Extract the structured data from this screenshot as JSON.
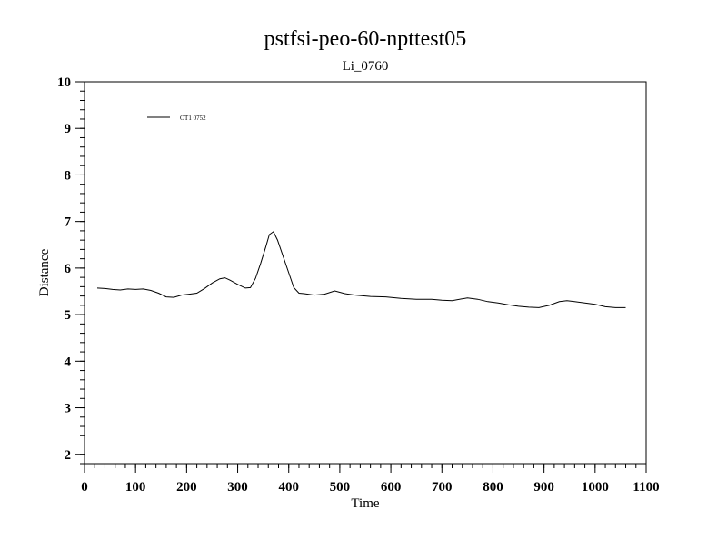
{
  "chart_data": {
    "type": "line",
    "title": "pstfsi-peo-60-npttest05",
    "subtitle": "Li_0760",
    "xlabel": "Time",
    "ylabel": "Distance",
    "xlim": [
      0,
      1100
    ],
    "ylim": [
      1.8,
      10
    ],
    "x_major_ticks": [
      0,
      100,
      200,
      300,
      400,
      500,
      600,
      700,
      800,
      900,
      1000,
      1100
    ],
    "x_tick_labels": [
      "0",
      "100",
      "200",
      "300",
      "400",
      "500",
      "600",
      "700",
      "800",
      "900",
      "1000",
      "1100"
    ],
    "y_major_ticks": [
      2,
      3,
      4,
      5,
      6,
      7,
      8,
      9,
      10
    ],
    "y_tick_labels": [
      "2",
      "3",
      "4",
      "5",
      "6",
      "7",
      "8",
      "9",
      "10"
    ],
    "x_minor_step": 20,
    "y_minor_step": 0.2,
    "grid": false,
    "legend_position": "top-left",
    "line_color": "#000000",
    "series": [
      {
        "name": "OT1 0752",
        "x": [
          25,
          40,
          55,
          70,
          85,
          100,
          115,
          130,
          145,
          160,
          175,
          190,
          205,
          220,
          235,
          250,
          265,
          275,
          285,
          300,
          315,
          325,
          335,
          345,
          355,
          362,
          370,
          378,
          390,
          400,
          410,
          420,
          430,
          450,
          470,
          490,
          510,
          530,
          560,
          590,
          620,
          650,
          680,
          700,
          720,
          750,
          770,
          790,
          810,
          830,
          850,
          870,
          890,
          910,
          930,
          945,
          960,
          980,
          1000,
          1020,
          1040,
          1060
        ],
        "y": [
          5.57,
          5.56,
          5.54,
          5.53,
          5.55,
          5.54,
          5.55,
          5.52,
          5.46,
          5.38,
          5.37,
          5.42,
          5.44,
          5.46,
          5.56,
          5.68,
          5.77,
          5.79,
          5.74,
          5.65,
          5.57,
          5.58,
          5.78,
          6.1,
          6.45,
          6.72,
          6.78,
          6.6,
          6.22,
          5.9,
          5.58,
          5.46,
          5.45,
          5.42,
          5.44,
          5.51,
          5.45,
          5.42,
          5.39,
          5.38,
          5.35,
          5.33,
          5.33,
          5.31,
          5.3,
          5.36,
          5.33,
          5.28,
          5.25,
          5.21,
          5.18,
          5.16,
          5.15,
          5.2,
          5.28,
          5.3,
          5.28,
          5.25,
          5.22,
          5.17,
          5.15,
          5.15
        ]
      }
    ]
  }
}
